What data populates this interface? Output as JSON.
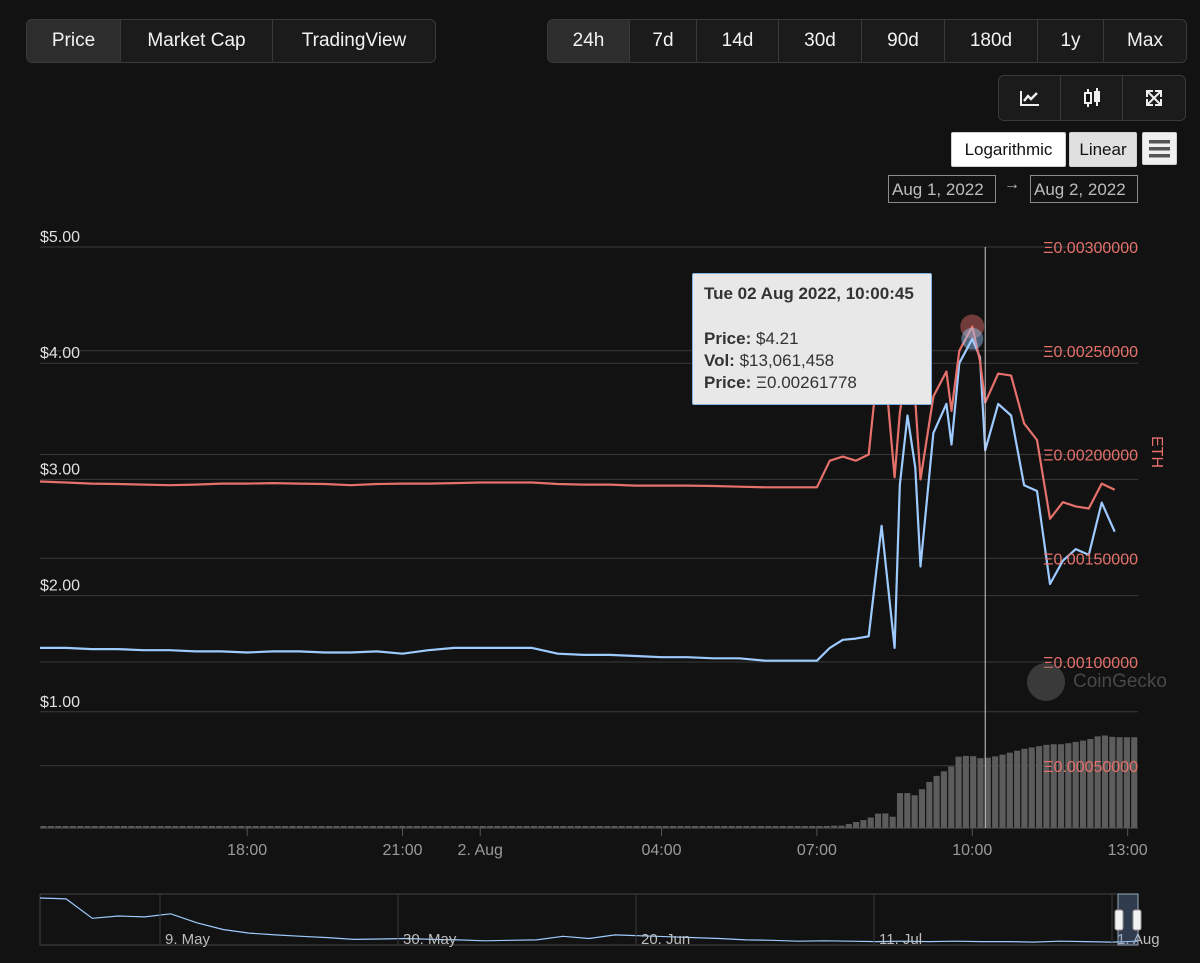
{
  "tabs": [
    {
      "label": "Price",
      "active": true
    },
    {
      "label": "Market Cap",
      "active": false
    },
    {
      "label": "TradingView",
      "active": false
    }
  ],
  "ranges": [
    {
      "label": "24h",
      "active": true
    },
    {
      "label": "7d",
      "active": false
    },
    {
      "label": "14d",
      "active": false
    },
    {
      "label": "30d",
      "active": false
    },
    {
      "label": "90d",
      "active": false
    },
    {
      "label": "180d",
      "active": false
    },
    {
      "label": "1y",
      "active": false
    },
    {
      "label": "Max",
      "active": false
    }
  ],
  "tools": [
    {
      "icon": "line-chart-icon"
    },
    {
      "icon": "candlestick-icon"
    },
    {
      "icon": "fullscreen-icon"
    }
  ],
  "scale": {
    "log_label": "Logarithmic",
    "linear_label": "Linear"
  },
  "date_range": {
    "from": "Aug 1, 2022",
    "arrow": "→",
    "to": "Aug 2, 2022"
  },
  "tooltip": {
    "title": "Tue 02 Aug 2022, 10:00:45",
    "price_label": "Price:",
    "price_value": "$4.21",
    "vol_label": "Vol:",
    "vol_value": "$13,061,458",
    "eth_label": "Price:",
    "eth_value": "Ξ0.00261778"
  },
  "watermark": "CoinGecko",
  "colors": {
    "usd": "#9ecbff",
    "eth": "#e6716b",
    "volume": "#5c5c5c",
    "grid": "#3a3a3a",
    "axis_text": "#e0e0e0",
    "eth_text": "#e6716b",
    "x_text": "#9a9a9a"
  },
  "chart_data": {
    "type": "line",
    "x": [
      0,
      0.5,
      1,
      1.5,
      2,
      2.5,
      3,
      3.5,
      4,
      4.5,
      5,
      5.5,
      6,
      6.5,
      7,
      7.5,
      8,
      8.5,
      9,
      9.5,
      10,
      10.5,
      11,
      11.5,
      12,
      12.5,
      13,
      13.5,
      14,
      14.5,
      15,
      15.25,
      15.5,
      15.75,
      16,
      16.25,
      16.5,
      16.6,
      16.75,
      16.9,
      17,
      17.25,
      17.5,
      17.6,
      17.75,
      18,
      18.15,
      18.25,
      18.5,
      18.75,
      19,
      19.25,
      19.5,
      19.75,
      20,
      20.25,
      20.5,
      20.75
    ],
    "x_ticks": [
      {
        "label": "18:00",
        "x": 4
      },
      {
        "label": "21:00",
        "x": 7
      },
      {
        "label": "2. Aug",
        "x": 8.5
      },
      {
        "label": "04:00",
        "x": 12
      },
      {
        "label": "07:00",
        "x": 15
      },
      {
        "label": "10:00",
        "x": 18
      },
      {
        "label": "13:00",
        "x": 21
      }
    ],
    "series": [
      {
        "axis": "usd",
        "values": [
          1.55,
          1.55,
          1.54,
          1.54,
          1.53,
          1.53,
          1.52,
          1.52,
          1.51,
          1.52,
          1.52,
          1.51,
          1.51,
          1.52,
          1.5,
          1.53,
          1.55,
          1.55,
          1.55,
          1.55,
          1.5,
          1.49,
          1.49,
          1.48,
          1.47,
          1.47,
          1.46,
          1.46,
          1.44,
          1.44,
          1.44,
          1.55,
          1.62,
          1.63,
          1.65,
          2.6,
          1.55,
          2.95,
          3.55,
          3.1,
          2.25,
          3.4,
          3.65,
          3.3,
          4.0,
          4.21,
          4.05,
          3.25,
          3.65,
          3.55,
          2.95,
          2.9,
          2.1,
          2.3,
          2.4,
          2.35,
          2.8,
          2.55
        ]
      },
      {
        "axis": "eth",
        "values": [
          0.00187,
          0.001865,
          0.00186,
          0.001858,
          0.001855,
          0.001852,
          0.001855,
          0.00186,
          0.00186,
          0.001862,
          0.00186,
          0.001858,
          0.001852,
          0.001858,
          0.00186,
          0.00186,
          0.001862,
          0.001865,
          0.001865,
          0.001865,
          0.001858,
          0.001855,
          0.001855,
          0.00185,
          0.00185,
          0.00185,
          0.001848,
          0.001845,
          0.001842,
          0.001842,
          0.001842,
          0.00197,
          0.00199,
          0.00197,
          0.002,
          0.0026,
          0.00189,
          0.0022,
          0.00245,
          0.00226,
          0.00188,
          0.00228,
          0.0024,
          0.00221,
          0.0025,
          0.002617,
          0.00245,
          0.00225,
          0.00239,
          0.00238,
          0.00215,
          0.00207,
          0.00169,
          0.00177,
          0.00175,
          0.00174,
          0.00186,
          0.00183
        ]
      }
    ],
    "volume": [
      0.01,
      0.01,
      0.01,
      0.01,
      0.01,
      0.01,
      0.01,
      0.01,
      0.01,
      0.01,
      0.01,
      0.01,
      0.01,
      0.01,
      0.01,
      0.01,
      0.01,
      0.01,
      0.01,
      0.01,
      0.01,
      0.01,
      0.01,
      0.01,
      0.01,
      0.01,
      0.01,
      0.01,
      0.01,
      0.01,
      0.01,
      0.02,
      0.02,
      0.05,
      0.08,
      0.14,
      0.09,
      0.3,
      0.3,
      0.28,
      0.32,
      0.43,
      0.5,
      0.53,
      0.62,
      0.62,
      0.6,
      0.6,
      0.62,
      0.65,
      0.68,
      0.7,
      0.72,
      0.72,
      0.74,
      0.76,
      0.8,
      0.78
    ],
    "y_left": {
      "ticks": [
        "$1.00",
        "$2.00",
        "$3.00",
        "$4.00",
        "$5.00"
      ],
      "values": [
        1,
        2,
        3,
        4,
        5
      ],
      "min": 0,
      "max": 5
    },
    "y_right": {
      "label": "ETH",
      "ticks": [
        "Ξ0.00050000",
        "Ξ0.00100000",
        "Ξ0.00150000",
        "Ξ0.00200000",
        "Ξ0.00250000",
        "Ξ0.00300000"
      ],
      "values": [
        0.0005,
        0.001,
        0.0015,
        0.002,
        0.0025,
        0.003
      ],
      "min": 0.0002,
      "max": 0.003
    },
    "crosshair_x": 18.25,
    "navigator": {
      "labels": [
        "9. May",
        "30. May",
        "20. Jun",
        "11. Jul",
        "1. Aug"
      ]
    }
  }
}
